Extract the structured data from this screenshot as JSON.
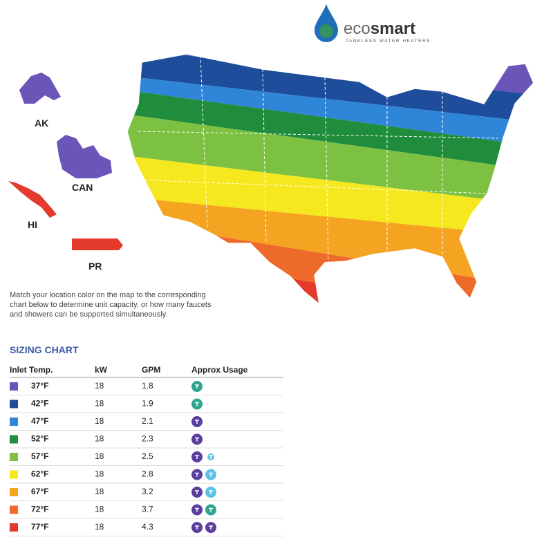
{
  "logo": {
    "name_light": "eco",
    "name_bold": "smart",
    "tagline": "TANKLESS WATER HEATERS"
  },
  "map": {
    "labels": [
      "AK",
      "CAN",
      "HI",
      "PR"
    ]
  },
  "description": "Match your location color on the map to the corresponding chart below to determine unit capacity, or how many faucets and showers can be supported simultaneously.",
  "sizing_chart": {
    "title": "SIZING CHART",
    "columns": [
      "Inlet Temp.",
      "kW",
      "GPM",
      "Approx Usage"
    ],
    "rows": [
      {
        "color": "#6b55b8",
        "temp": "37°F",
        "kw": 18,
        "gpm": 1.8
      },
      {
        "color": "#1d4d9b",
        "temp": "42°F",
        "kw": 18,
        "gpm": 1.9
      },
      {
        "color": "#2f86d8",
        "temp": "47°F",
        "kw": 18,
        "gpm": 2.1
      },
      {
        "color": "#1f8d3b",
        "temp": "52°F",
        "kw": 18,
        "gpm": 2.3
      },
      {
        "color": "#7cc142",
        "temp": "57°F",
        "kw": 18,
        "gpm": 2.5
      },
      {
        "color": "#f6e81e",
        "temp": "62°F",
        "kw": 18,
        "gpm": 2.8
      },
      {
        "color": "#f5a421",
        "temp": "67°F",
        "kw": 18,
        "gpm": 3.2
      },
      {
        "color": "#ee6a2b",
        "temp": "72°F",
        "kw": 18,
        "gpm": 3.7
      },
      {
        "color": "#e43a2b",
        "temp": "77°F",
        "kw": 18,
        "gpm": 4.3
      }
    ]
  }
}
